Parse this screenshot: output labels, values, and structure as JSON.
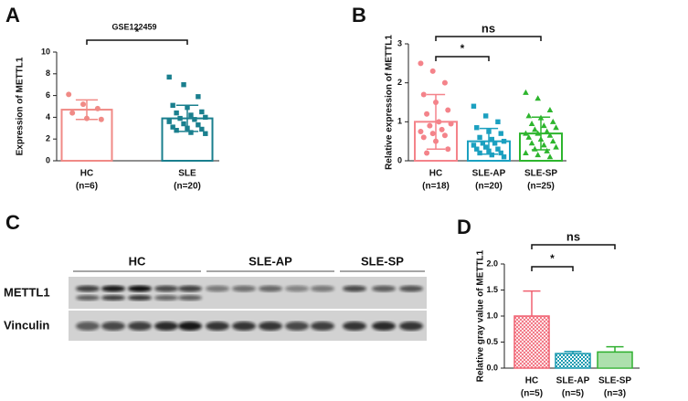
{
  "chart_data": [
    {
      "type": "bar",
      "panel_label": "A",
      "title": "GSE122459",
      "ylabel": "Expression of METTL1",
      "categories": [
        "HC",
        "SLE"
      ],
      "n_labels": [
        "(n=6)",
        "(n=20)"
      ],
      "values": [
        4.7,
        3.9
      ],
      "errors": [
        0.9,
        1.2
      ],
      "points": [
        [
          6.1,
          5.2,
          4.8,
          4.4,
          3.9,
          3.8
        ],
        [
          7.7,
          7.0,
          5.9,
          5.1,
          4.9,
          4.5,
          4.4,
          4.2,
          4.0,
          3.9,
          3.8,
          3.6,
          3.4,
          3.3,
          3.1,
          3.0,
          2.9,
          2.8,
          2.6,
          2.5
        ]
      ],
      "colors": [
        "#f08a86",
        "#1a7f8e"
      ],
      "markers": [
        "circle",
        "square"
      ],
      "bar_fill": "outline",
      "ylim": [
        0,
        10
      ],
      "yticks": [
        0,
        2,
        4,
        6,
        8,
        10
      ],
      "comparisons": [
        {
          "from": 0,
          "to": 1,
          "label": "*"
        }
      ]
    },
    {
      "type": "bar",
      "panel_label": "B",
      "ylabel": "Relative expression of METTL1",
      "categories": [
        "HC",
        "SLE-AP",
        "SLE-SP"
      ],
      "n_labels": [
        "(n=18)",
        "(n=20)",
        "(n=25)"
      ],
      "values": [
        1.0,
        0.5,
        0.7
      ],
      "errors": [
        0.7,
        0.33,
        0.42
      ],
      "points": [
        [
          2.5,
          2.3,
          2.0,
          1.7,
          1.5,
          1.3,
          1.2,
          1.0,
          0.95,
          0.9,
          0.8,
          0.75,
          0.7,
          0.65,
          0.6,
          0.5,
          0.3,
          0.2
        ],
        [
          1.4,
          1.15,
          1.0,
          0.85,
          0.75,
          0.7,
          0.6,
          0.55,
          0.5,
          0.45,
          0.45,
          0.4,
          0.35,
          0.3,
          0.3,
          0.25,
          0.2,
          0.2,
          0.15,
          0.1
        ],
        [
          1.75,
          1.6,
          1.3,
          1.15,
          1.1,
          1.0,
          0.95,
          0.9,
          0.85,
          0.8,
          0.75,
          0.7,
          0.7,
          0.65,
          0.6,
          0.55,
          0.5,
          0.45,
          0.4,
          0.35,
          0.3,
          0.25,
          0.2,
          0.15,
          0.1
        ]
      ],
      "colors": [
        "#f4838a",
        "#1ba0c0",
        "#2db52d"
      ],
      "markers": [
        "circle",
        "square",
        "triangle"
      ],
      "bar_fill": "outline",
      "ylim": [
        0,
        3
      ],
      "yticks": [
        0,
        1,
        2,
        3
      ],
      "comparisons": [
        {
          "from": 0,
          "to": 1,
          "label": "*"
        },
        {
          "from": 0,
          "to": 2,
          "label": "ns"
        }
      ]
    },
    {
      "type": "bar",
      "panel_label": "D",
      "ylabel": "Relative gray value of METTL1",
      "categories": [
        "HC",
        "SLE-AP",
        "SLE-SP"
      ],
      "n_labels": [
        "(n=5)",
        "(n=5)",
        "(n=3)"
      ],
      "values": [
        1.0,
        0.28,
        0.31
      ],
      "errors": [
        0.48,
        0.04,
        0.1
      ],
      "colors": [
        "#f06070",
        "#1a9ab0",
        "#30b030"
      ],
      "patterns": [
        "crosshatch",
        "checker",
        "horizontal"
      ],
      "bar_fill": "hatched",
      "ylim": [
        0,
        2.0
      ],
      "yticks": [
        {
          "value": 0,
          "label": "0.0"
        },
        {
          "value": 0.5,
          "label": "0.5"
        },
        {
          "value": 1.0,
          "label": "1.0"
        },
        {
          "value": 1.5,
          "label": "1.5"
        },
        {
          "value": 2.0,
          "label": "2.0"
        }
      ],
      "comparisons": [
        {
          "from": 0,
          "to": 1,
          "label": "*"
        },
        {
          "from": 0,
          "to": 2,
          "label": "ns"
        }
      ]
    }
  ],
  "blot": {
    "panel_label": "C",
    "groups": [
      "HC",
      "SLE-AP",
      "SLE-SP"
    ],
    "rows": [
      "METTL1",
      "Vinculin"
    ]
  }
}
